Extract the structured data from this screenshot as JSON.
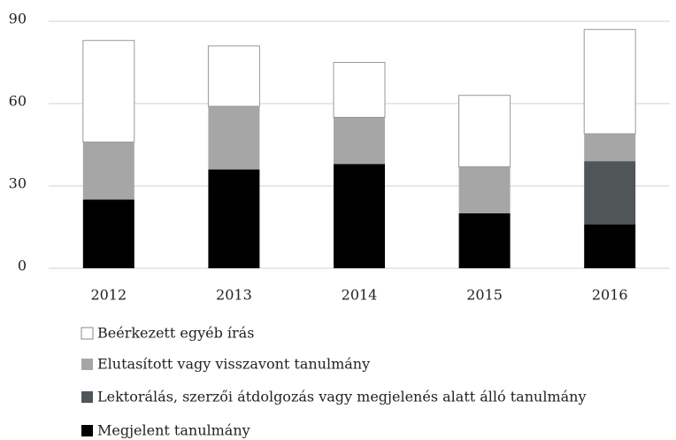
{
  "chart_data": {
    "type": "stacked_bar",
    "categories": [
      "2012",
      "2013",
      "2014",
      "2015",
      "2016"
    ],
    "series": [
      {
        "name": "Megjelent tanulmány",
        "color": "#000000",
        "values": [
          25,
          36,
          38,
          20,
          16
        ]
      },
      {
        "name": "Lektorálás, szerzői átdolgozás vagy megjelenés alatt álló tanulmány",
        "color": "#505558",
        "values": [
          0,
          0,
          0,
          0,
          23
        ]
      },
      {
        "name": "Elutasított vagy visszavont tanulmány",
        "color": "#a6a6a6",
        "values": [
          21,
          23,
          17,
          17,
          10
        ]
      },
      {
        "name": "Beérkezett egyéb írás",
        "color": "#ffffff",
        "values": [
          37,
          22,
          20,
          26,
          38
        ]
      }
    ],
    "ylim": [
      0,
      90
    ],
    "yticks": [
      0,
      30,
      60,
      90
    ],
    "grid": true
  }
}
